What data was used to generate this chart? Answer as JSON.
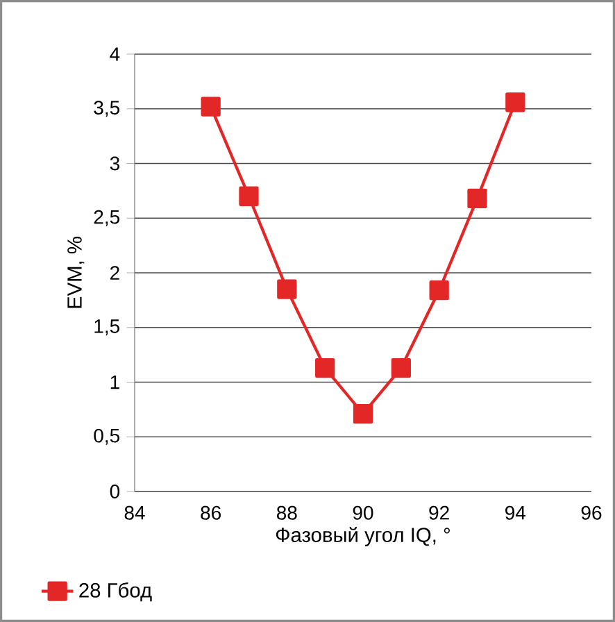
{
  "chart_data": {
    "type": "line",
    "xlabel": "Фазовый угол IQ, °",
    "ylabel": "EVM, %",
    "x": [
      86,
      87,
      88,
      89,
      90,
      91,
      92,
      93,
      94
    ],
    "series": [
      {
        "name": "28 Гбод",
        "color": "#e32726",
        "values": [
          3.52,
          2.7,
          1.85,
          1.13,
          0.71,
          1.13,
          1.84,
          2.68,
          3.56
        ]
      }
    ],
    "xlim": [
      84,
      96
    ],
    "xticks": [
      84,
      86,
      88,
      90,
      92,
      94,
      96
    ],
    "ylim": [
      0,
      4
    ],
    "yticks": [
      0,
      {
        "value": 0.5,
        "label": "0,5"
      },
      1,
      {
        "value": 1.5,
        "label": "1,5"
      },
      2,
      {
        "value": 2.5,
        "label": "2,5"
      },
      3,
      {
        "value": 3.5,
        "label": "3,5"
      },
      4
    ],
    "grid": "y",
    "legend": "bottom left",
    "marker": "square",
    "line_style": "solid"
  }
}
